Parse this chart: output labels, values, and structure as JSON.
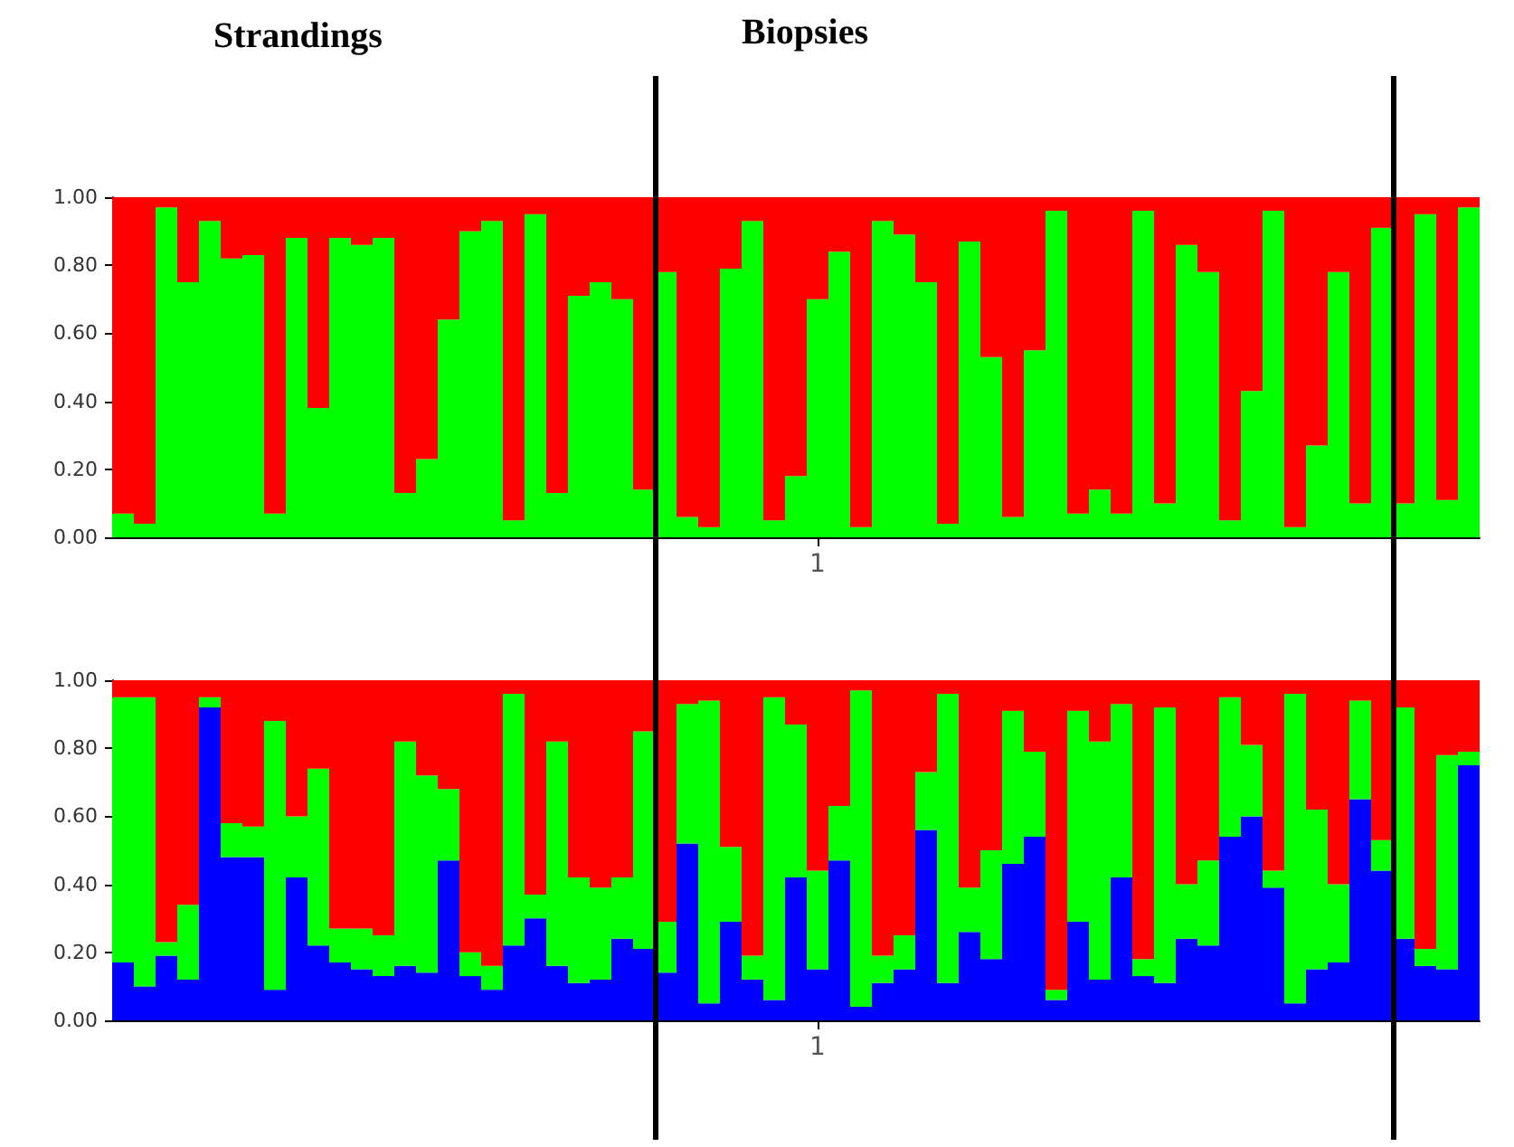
{
  "chart_data": [
    {
      "type": "bar",
      "stacked": true,
      "annotations": [
        "Strandings",
        "Biopsies"
      ],
      "categories": [
        null,
        null,
        null,
        null,
        null,
        null,
        null,
        null,
        null,
        null,
        null,
        null,
        null,
        null,
        null,
        null,
        null,
        null,
        null,
        null,
        null,
        null,
        null,
        null,
        null,
        null,
        null,
        null,
        null,
        null,
        null,
        null,
        "1",
        null,
        null,
        null,
        null,
        null,
        null,
        null,
        null,
        null,
        null,
        null,
        null,
        null,
        null,
        null,
        null,
        null,
        null,
        null,
        null,
        null,
        null,
        null,
        null,
        null,
        null,
        null,
        null,
        null,
        null
      ],
      "series": [
        {
          "color": "#00ff00",
          "values": [
            0.07,
            0.04,
            0.97,
            0.75,
            0.93,
            0.82,
            0.83,
            0.07,
            0.88,
            0.38,
            0.88,
            0.86,
            0.88,
            0.13,
            0.23,
            0.64,
            0.9,
            0.93,
            0.05,
            0.95,
            0.13,
            0.71,
            0.75,
            0.7,
            0.14,
            0.78,
            0.06,
            0.03,
            0.79,
            0.93,
            0.05,
            0.18,
            0.7,
            0.84,
            0.03,
            0.93,
            0.89,
            0.75,
            0.04,
            0.87,
            0.53,
            0.06,
            0.55,
            0.96,
            0.07,
            0.14,
            0.07,
            0.96,
            0.1,
            0.86,
            0.78,
            0.05,
            0.43,
            0.96,
            0.03,
            0.27,
            0.78,
            0.1,
            0.91,
            0.1,
            0.95,
            0.11,
            0.97
          ]
        },
        {
          "color": "#ff0000",
          "values": [
            0.93,
            0.96,
            0.03,
            0.25,
            0.07,
            0.18,
            0.17,
            0.93,
            0.12,
            0.62,
            0.12,
            0.14,
            0.12,
            0.87,
            0.77,
            0.36,
            0.1,
            0.07,
            0.95,
            0.05,
            0.87,
            0.29,
            0.25,
            0.3,
            0.86,
            0.22,
            0.94,
            0.97,
            0.21,
            0.07,
            0.95,
            0.82,
            0.3,
            0.16,
            0.97,
            0.07,
            0.11,
            0.25,
            0.96,
            0.13,
            0.47,
            0.94,
            0.45,
            0.04,
            0.93,
            0.86,
            0.93,
            0.04,
            0.9,
            0.14,
            0.22,
            0.95,
            0.57,
            0.04,
            0.97,
            0.73,
            0.22,
            0.9,
            0.09,
            0.9,
            0.05,
            0.89,
            0.03
          ]
        }
      ],
      "ylim": [
        0,
        1
      ],
      "yticks": [
        {
          "value": 0,
          "label": "0.00"
        },
        {
          "value": 0.2,
          "label": "0.20"
        },
        {
          "value": 0.4,
          "label": "0.40"
        },
        {
          "value": 0.6,
          "label": "0.60"
        },
        {
          "value": 0.8,
          "label": "0.80"
        },
        {
          "value": 1,
          "label": "1.00"
        }
      ],
      "grid": false
    },
    {
      "type": "bar",
      "stacked": true,
      "categories": [
        null,
        null,
        null,
        null,
        null,
        null,
        null,
        null,
        null,
        null,
        null,
        null,
        null,
        null,
        null,
        null,
        null,
        null,
        null,
        null,
        null,
        null,
        null,
        null,
        null,
        null,
        null,
        null,
        null,
        null,
        null,
        null,
        "1",
        null,
        null,
        null,
        null,
        null,
        null,
        null,
        null,
        null,
        null,
        null,
        null,
        null,
        null,
        null,
        null,
        null,
        null,
        null,
        null,
        null,
        null,
        null,
        null,
        null,
        null,
        null,
        null,
        null,
        null
      ],
      "series": [
        {
          "color": "#0000ff",
          "values": [
            0.17,
            0.1,
            0.19,
            0.12,
            0.92,
            0.48,
            0.48,
            0.09,
            0.42,
            0.22,
            0.17,
            0.15,
            0.13,
            0.16,
            0.14,
            0.47,
            0.13,
            0.09,
            0.22,
            0.3,
            0.16,
            0.11,
            0.12,
            0.24,
            0.21,
            0.14,
            0.52,
            0.05,
            0.29,
            0.12,
            0.06,
            0.42,
            0.15,
            0.47,
            0.04,
            0.11,
            0.15,
            0.56,
            0.11,
            0.26,
            0.18,
            0.46,
            0.54,
            0.06,
            0.29,
            0.12,
            0.42,
            0.13,
            0.11,
            0.24,
            0.22,
            0.54,
            0.6,
            0.39,
            0.05,
            0.15,
            0.17,
            0.65,
            0.44,
            0.24,
            0.16,
            0.15,
            0.75
          ]
        },
        {
          "color": "#00ff00",
          "values": [
            0.78,
            0.85,
            0.04,
            0.22,
            0.03,
            0.1,
            0.09,
            0.79,
            0.18,
            0.52,
            0.1,
            0.12,
            0.12,
            0.66,
            0.58,
            0.21,
            0.07,
            0.07,
            0.74,
            0.07,
            0.66,
            0.31,
            0.27,
            0.18,
            0.64,
            0.15,
            0.41,
            0.89,
            0.22,
            0.07,
            0.89,
            0.45,
            0.29,
            0.16,
            0.93,
            0.08,
            0.1,
            0.17,
            0.85,
            0.13,
            0.32,
            0.45,
            0.25,
            0.03,
            0.62,
            0.7,
            0.51,
            0.05,
            0.81,
            0.16,
            0.25,
            0.41,
            0.21,
            0.05,
            0.91,
            0.47,
            0.23,
            0.29,
            0.09,
            0.68,
            0.05,
            0.63,
            0.04
          ]
        },
        {
          "color": "#ff0000",
          "values": [
            0.05,
            0.05,
            0.77,
            0.66,
            0.05,
            0.42,
            0.43,
            0.12,
            0.4,
            0.26,
            0.73,
            0.73,
            0.75,
            0.18,
            0.28,
            0.32,
            0.8,
            0.84,
            0.04,
            0.63,
            0.18,
            0.58,
            0.61,
            0.58,
            0.15,
            0.71,
            0.07,
            0.06,
            0.49,
            0.81,
            0.05,
            0.13,
            0.56,
            0.37,
            0.03,
            0.81,
            0.75,
            0.27,
            0.04,
            0.61,
            0.5,
            0.09,
            0.21,
            0.91,
            0.09,
            0.18,
            0.07,
            0.82,
            0.08,
            0.6,
            0.53,
            0.05,
            0.19,
            0.56,
            0.04,
            0.38,
            0.6,
            0.06,
            0.47,
            0.08,
            0.79,
            0.22,
            0.21
          ]
        }
      ],
      "ylim": [
        0,
        1
      ],
      "yticks": [
        {
          "value": 0,
          "label": "0.00"
        },
        {
          "value": 0.2,
          "label": "0.20"
        },
        {
          "value": 0.4,
          "label": "0.40"
        },
        {
          "value": 0.6,
          "label": "0.60"
        },
        {
          "value": 0.8,
          "label": "0.80"
        },
        {
          "value": 1,
          "label": "1.00"
        }
      ],
      "grid": false
    }
  ]
}
